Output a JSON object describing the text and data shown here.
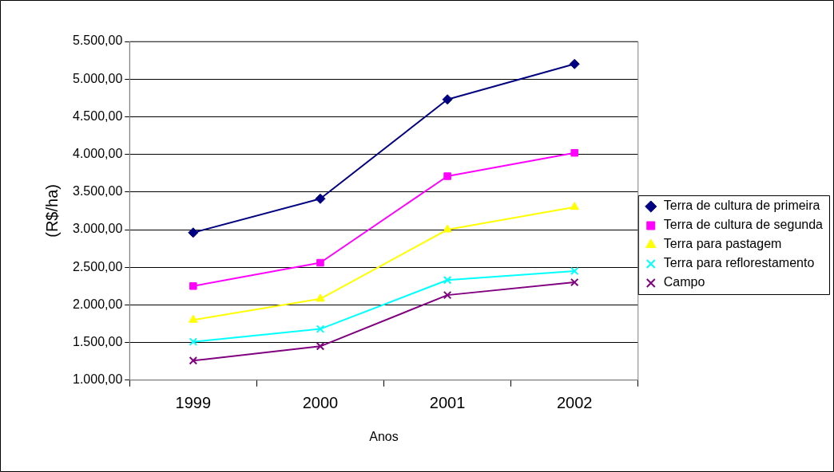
{
  "chart_data": {
    "type": "line",
    "xlabel": "Anos",
    "ylabel": "(R$/ha)",
    "categories": [
      "1999",
      "2000",
      "2001",
      "2002"
    ],
    "series": [
      {
        "name": "Terra de cultura de primeira",
        "color": "#000080",
        "marker": "diamond",
        "values": [
          2960,
          3410,
          4730,
          5200
        ]
      },
      {
        "name": "Terra de cultura de segunda",
        "color": "#ff00ff",
        "marker": "square",
        "values": [
          2250,
          2560,
          3710,
          4020
        ]
      },
      {
        "name": "Terra para pastagem",
        "color": "#ffff00",
        "marker": "triangle",
        "values": [
          1800,
          2080,
          3000,
          3300
        ]
      },
      {
        "name": "Terra para reflorestamento",
        "color": "#00ffff",
        "marker": "cross",
        "values": [
          1510,
          1680,
          2330,
          2450
        ]
      },
      {
        "name": "Campo",
        "color": "#800080",
        "marker": "cross",
        "values": [
          1260,
          1450,
          2130,
          2300
        ]
      }
    ],
    "ylim": [
      1000,
      5500
    ],
    "yticks": [
      {
        "value": 1000,
        "label": "1.000,00"
      },
      {
        "value": 1500,
        "label": "1.500,00"
      },
      {
        "value": 2000,
        "label": "2.000,00"
      },
      {
        "value": 2500,
        "label": "2.500,00"
      },
      {
        "value": 3000,
        "label": "3.000,00"
      },
      {
        "value": 3500,
        "label": "3.500,00"
      },
      {
        "value": 4000,
        "label": "4.000,00"
      },
      {
        "value": 4500,
        "label": "4.500,00"
      },
      {
        "value": 5000,
        "label": "5.000,00"
      },
      {
        "value": 5500,
        "label": "5.500,00"
      }
    ],
    "grid": "y",
    "legend": "right",
    "line_style": "solid"
  }
}
